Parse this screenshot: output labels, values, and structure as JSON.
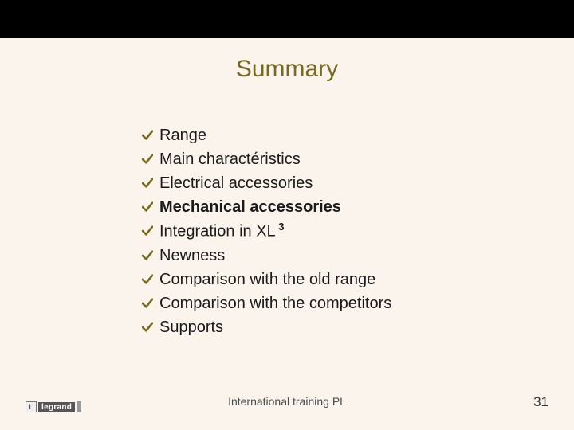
{
  "background_color": "#faf4ec",
  "top_band_color": "#000000",
  "title": {
    "text": "Summary",
    "color": "#7a6a1f",
    "fontsize": 30
  },
  "bullet": {
    "color": "#7a6a1f",
    "glyph": "checkmark"
  },
  "items": [
    {
      "text": "Range",
      "bold": false
    },
    {
      "text": "Main charactéristics",
      "bold": false
    },
    {
      "text": "Electrical accessories",
      "bold": false
    },
    {
      "text": "Mechanical accessories",
      "bold": true
    },
    {
      "text": "Integration in XL",
      "sup": "3",
      "bold": false
    },
    {
      "text": "Newness",
      "bold": false
    },
    {
      "text": "Comparison with the old range",
      "bold": false
    },
    {
      "text": "Comparison with the competitors",
      "bold": false
    },
    {
      "text": "Supports",
      "bold": false
    }
  ],
  "footer": {
    "center_text": "International training PL",
    "page_number": "31"
  },
  "logo": {
    "mark": "L",
    "word": "legrand"
  }
}
